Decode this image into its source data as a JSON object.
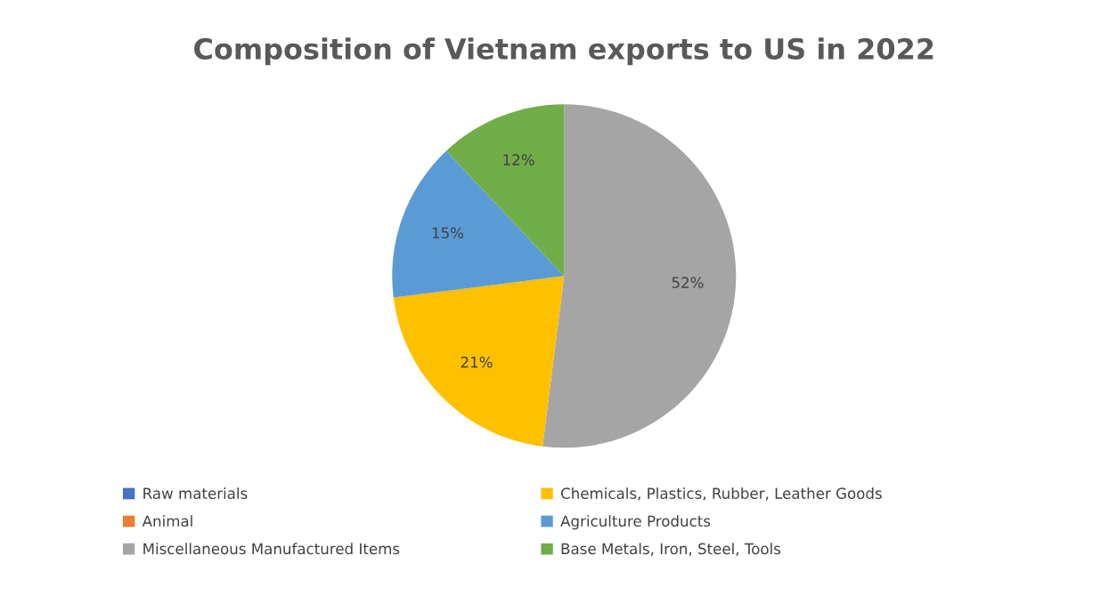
{
  "chart_data": {
    "type": "pie",
    "title": "Composition of Vietnam exports to US in 2022",
    "categories": [
      "Raw materials",
      "Animal",
      "Miscellaneous Manufactured Items",
      "Chemicals, Plastics, Rubber, Leather Goods",
      "Agriculture Products",
      "Base Metals, Iron, Steel, Tools"
    ],
    "values": [
      0,
      0,
      52,
      21,
      15,
      12
    ],
    "colors": [
      "#4472c4",
      "#ed7d31",
      "#a5a5a5",
      "#ffc000",
      "#5b9bd5",
      "#70ad47"
    ],
    "value_labels": [
      null,
      null,
      "52%",
      "21%",
      "15%",
      "12%"
    ],
    "legend": "bottom"
  }
}
